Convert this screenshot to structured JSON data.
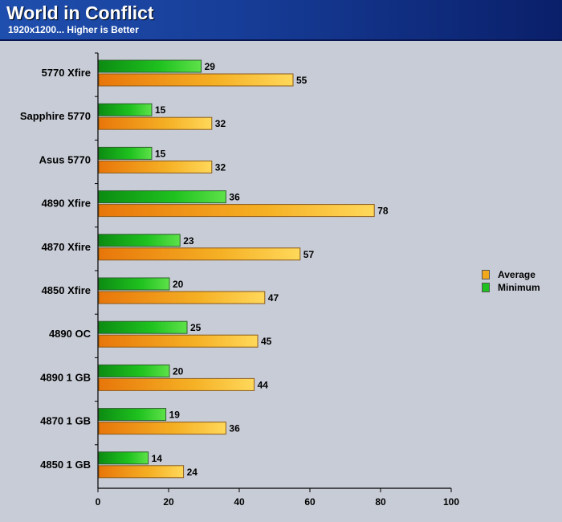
{
  "header": {
    "title": "World in Conflict",
    "subtitle": "1920x1200... Higher is Better"
  },
  "colors": {
    "average": "#f2a81d",
    "minimum": "#1fbf1f"
  },
  "chart_data": {
    "type": "bar",
    "orientation": "horizontal",
    "title": "World in Conflict",
    "subtitle": "1920x1200... Higher is Better",
    "categories": [
      "5770 Xfire",
      "Sapphire 5770",
      "Asus 5770",
      "4890 Xfire",
      "4870 Xfire",
      "4850 Xfire",
      "4890 OC",
      "4890 1 GB",
      "4870 1 GB",
      "4850 1 GB"
    ],
    "series": [
      {
        "name": "Average",
        "values": [
          55,
          32,
          32,
          78,
          57,
          47,
          45,
          44,
          36,
          24
        ]
      },
      {
        "name": "Minimum",
        "values": [
          29,
          15,
          15,
          36,
          23,
          20,
          25,
          20,
          19,
          14
        ]
      }
    ],
    "xlim": [
      0,
      100
    ],
    "xticks": [
      0,
      20,
      40,
      60,
      80,
      100
    ],
    "xticklabels": [
      "0",
      "20",
      "40",
      "60",
      "80",
      "100"
    ],
    "legend": "right",
    "grid": false
  }
}
